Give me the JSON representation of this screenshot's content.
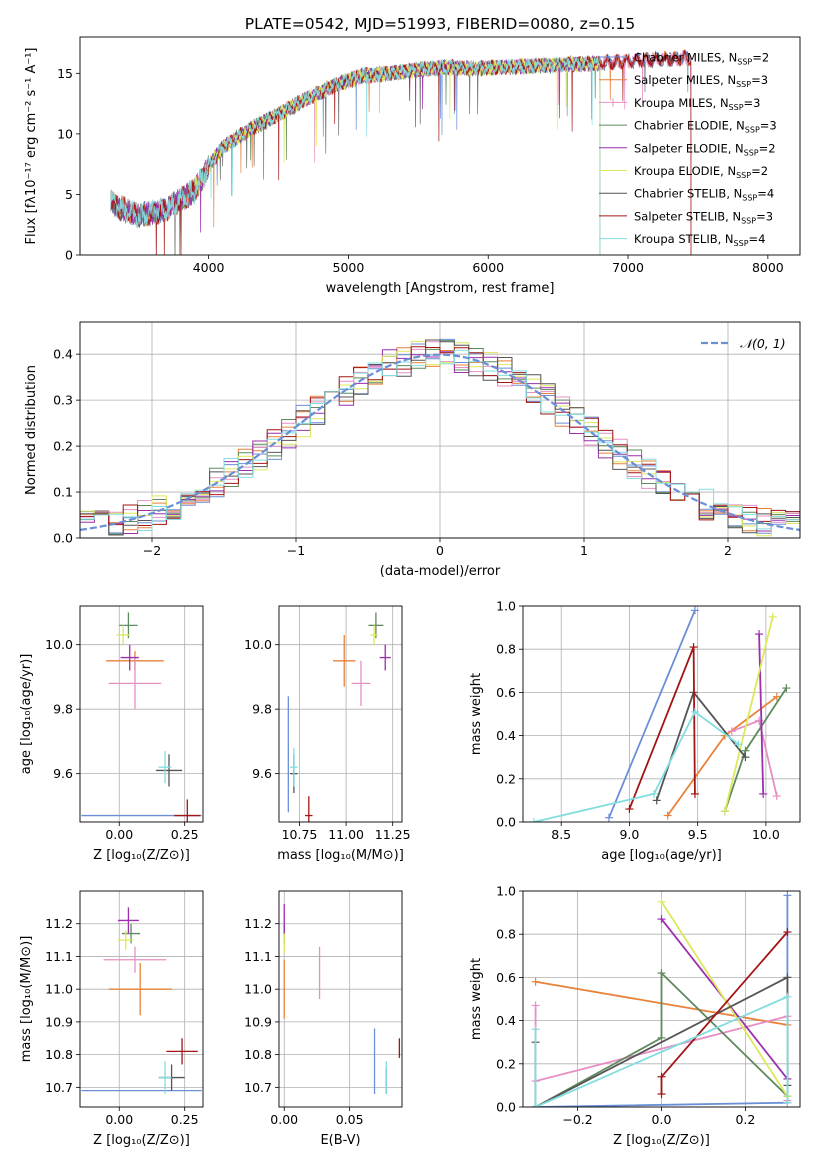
{
  "figure_title": "PLATE=0542, MJD=51993, FIBERID=0080, z=0.15",
  "series_colors": [
    "#6a8fd6",
    "#e8823a",
    "#e58fc3",
    "#5f8a5f",
    "#9b2fae",
    "#dde85a",
    "#555555",
    "#a31515",
    "#82dde0"
  ],
  "chart_data": [
    {
      "id": "spectrum",
      "type": "line",
      "title": "PLATE=0542, MJD=51993, FIBERID=0080, z=0.15",
      "xlabel": "wavelength [Angstrom, rest frame]",
      "ylabel": "Flux [fλ10⁻¹⁷ erg cm⁻² s⁻¹ A⁻¹]",
      "xlim": [
        3080,
        8230
      ],
      "ylim": [
        0,
        18
      ],
      "xticks": [
        4000,
        5000,
        6000,
        7000,
        8000
      ],
      "yticks": [
        0,
        5,
        10,
        15
      ],
      "grid": false,
      "legend_position": "top-right",
      "continuum_profile": {
        "wavelength": [
          3300,
          3500,
          3700,
          3900,
          4000,
          4100,
          4300,
          4500,
          4700,
          4900,
          5100,
          5300,
          5500,
          5700,
          5900,
          6100,
          6300,
          6500,
          6700,
          6900,
          7100,
          7300,
          7450
        ],
        "flux": [
          4.3,
          3.2,
          3.8,
          5.3,
          7.3,
          8.9,
          10.4,
          11.6,
          12.9,
          14.0,
          14.8,
          15.0,
          15.3,
          15.5,
          15.4,
          15.5,
          15.6,
          15.7,
          15.8,
          15.9,
          16.1,
          16.2,
          16.3
        ]
      },
      "series": [
        {
          "name": "Chabrier MILES, N_SSP=2",
          "label_main": "Chabrier MILES, N",
          "label_sub": "SSP",
          "label_tail": "=2",
          "range": [
            3300,
            7450
          ]
        },
        {
          "name": "Salpeter MILES, N_SSP=3",
          "label_main": "Salpeter MILES, N",
          "label_sub": "SSP",
          "label_tail": "=3",
          "range": [
            3300,
            7450
          ]
        },
        {
          "name": "Kroupa MILES, N_SSP=3",
          "label_main": "Kroupa MILES, N",
          "label_sub": "SSP",
          "label_tail": "=3",
          "range": [
            3300,
            7450
          ]
        },
        {
          "name": "Chabrier ELODIE, N_SSP=3",
          "label_main": "Chabrier ELODIE, N",
          "label_sub": "SSP",
          "label_tail": "=3",
          "range": [
            3300,
            6800
          ]
        },
        {
          "name": "Salpeter ELODIE, N_SSP=2",
          "label_main": "Salpeter ELODIE, N",
          "label_sub": "SSP",
          "label_tail": "=2",
          "range": [
            3300,
            6800
          ]
        },
        {
          "name": "Kroupa ELODIE, N_SSP=2",
          "label_main": "Kroupa ELODIE, N",
          "label_sub": "SSP",
          "label_tail": "=2",
          "range": [
            3900,
            6800
          ]
        },
        {
          "name": "Chabrier STELIB, N_SSP=4",
          "label_main": "Chabrier STELIB, N",
          "label_sub": "SSP",
          "label_tail": "=4",
          "range": [
            3300,
            7450
          ]
        },
        {
          "name": "Salpeter STELIB, N_SSP=3",
          "label_main": "Salpeter STELIB, N",
          "label_sub": "SSP",
          "label_tail": "=3",
          "range": [
            3300,
            7450
          ]
        },
        {
          "name": "Kroupa STELIB, N_SSP=4",
          "label_main": "Kroupa STELIB, N",
          "label_sub": "SSP",
          "label_tail": "=4",
          "range": [
            3300,
            6800
          ]
        }
      ]
    },
    {
      "id": "residuals",
      "type": "histogram",
      "xlabel": "(data-model)/error",
      "ylabel": "Normed distribution",
      "xlim": [
        -2.5,
        2.5
      ],
      "ylim": [
        0,
        0.47
      ],
      "xticks": [
        -2,
        -1,
        0,
        1,
        2
      ],
      "yticks": [
        0.0,
        0.1,
        0.2,
        0.3,
        0.4
      ],
      "grid": true,
      "legend_position": "top-right",
      "legend_label": "𝒩(0, 1)",
      "reference_curve": "normal(0,1) pdf",
      "bin_width": 0.1,
      "bin_start": -2.5
    },
    {
      "id": "age_vs_Z",
      "type": "scatter",
      "xlabel": "Z [log₁₀(Z/Z⊙)]",
      "ylabel": "age  [log₁₀(age/yr)]",
      "xlim": [
        -0.15,
        0.32
      ],
      "ylim": [
        9.45,
        10.12
      ],
      "xticks": [
        0.0,
        0.25
      ],
      "yticks": [
        9.6,
        9.8,
        10.0
      ],
      "grid": true,
      "points": [
        {
          "x": 0.085,
          "xerr": 0.23,
          "y": 9.47,
          "yerr": 0.0
        },
        {
          "x": 0.06,
          "xerr": 0.11,
          "y": 9.95,
          "yerr": 0.03
        },
        {
          "x": 0.06,
          "xerr": 0.1,
          "y": 9.88,
          "yerr": 0.08
        },
        {
          "x": 0.035,
          "xerr": 0.035,
          "y": 10.06,
          "yerr": 0.04
        },
        {
          "x": 0.04,
          "xerr": 0.035,
          "y": 9.96,
          "yerr": 0.04
        },
        {
          "x": 0.015,
          "xerr": 0.025,
          "y": 10.03,
          "yerr": 0.03
        },
        {
          "x": 0.19,
          "xerr": 0.05,
          "y": 9.61,
          "yerr": 0.05
        },
        {
          "x": 0.26,
          "xerr": 0.05,
          "y": 9.47,
          "yerr": 0.05
        },
        {
          "x": 0.175,
          "xerr": 0.025,
          "y": 9.62,
          "yerr": 0.05
        }
      ]
    },
    {
      "id": "age_vs_mass",
      "type": "scatter",
      "xlabel": "mass [log₁₀(M/M⊙)]",
      "ylabel": "",
      "xlim": [
        10.64,
        11.3
      ],
      "ylim": [
        9.45,
        10.12
      ],
      "xticks": [
        10.75,
        11.0,
        11.25
      ],
      "yticks": [
        9.6,
        9.8,
        10.0
      ],
      "grid": true,
      "points": [
        {
          "x": 10.69,
          "xerr": 0.0,
          "y": 9.66,
          "yerr": 0.18
        },
        {
          "x": 10.99,
          "xerr": 0.06,
          "y": 9.95,
          "yerr": 0.08
        },
        {
          "x": 11.08,
          "xerr": 0.05,
          "y": 9.88,
          "yerr": 0.07
        },
        {
          "x": 11.16,
          "xerr": 0.04,
          "y": 10.06,
          "yerr": 0.04
        },
        {
          "x": 11.21,
          "xerr": 0.03,
          "y": 9.96,
          "yerr": 0.04
        },
        {
          "x": 11.15,
          "xerr": 0.02,
          "y": 10.03,
          "yerr": 0.03
        },
        {
          "x": 10.72,
          "xerr": 0.02,
          "y": 9.6,
          "yerr": 0.06
        },
        {
          "x": 10.8,
          "xerr": 0.02,
          "y": 9.47,
          "yerr": 0.06
        },
        {
          "x": 10.72,
          "xerr": 0.02,
          "y": 9.62,
          "yerr": 0.06
        }
      ]
    },
    {
      "id": "weight_vs_age",
      "type": "line",
      "xlabel": "age  [log₁₀(age/yr)]",
      "ylabel": "mass weight",
      "xlim": [
        8.22,
        10.25
      ],
      "ylim": [
        0,
        1.0
      ],
      "xticks": [
        8.5,
        9.0,
        9.5,
        10.0
      ],
      "yticks": [
        0.0,
        0.2,
        0.4,
        0.6,
        0.8,
        1.0
      ],
      "grid": true,
      "series": [
        {
          "x": [
            8.85,
            9.48
          ],
          "y": [
            0.02,
            0.98
          ]
        },
        {
          "x": [
            9.28,
            9.7,
            10.08
          ],
          "y": [
            0.03,
            0.4,
            0.58
          ]
        },
        {
          "x": [
            9.75,
            9.95,
            10.08
          ],
          "y": [
            0.42,
            0.47,
            0.12
          ]
        },
        {
          "x": [
            9.7,
            9.85,
            10.15
          ],
          "y": [
            0.05,
            0.33,
            0.62
          ]
        },
        {
          "x": [
            9.95,
            9.98
          ],
          "y": [
            0.87,
            0.13
          ]
        },
        {
          "x": [
            9.7,
            10.05
          ],
          "y": [
            0.05,
            0.95
          ]
        },
        {
          "x": [
            9.2,
            9.47,
            9.85
          ],
          "y": [
            0.1,
            0.6,
            0.3
          ]
        },
        {
          "x": [
            9.0,
            9.47,
            9.48
          ],
          "y": [
            0.06,
            0.81,
            0.13
          ]
        },
        {
          "x": [
            8.3,
            9.18,
            9.48,
            9.8
          ],
          "y": [
            0.0,
            0.13,
            0.51,
            0.36
          ]
        }
      ]
    },
    {
      "id": "mass_vs_Z",
      "type": "scatter",
      "xlabel": "Z [log₁₀(Z/Z⊙)]",
      "ylabel": "mass [log₁₀(M/M⊙)]",
      "xlim": [
        -0.15,
        0.32
      ],
      "ylim": [
        10.64,
        11.3
      ],
      "xticks": [
        0.0,
        0.25
      ],
      "yticks": [
        10.7,
        10.8,
        10.9,
        11.0,
        11.1,
        11.2
      ],
      "grid": true,
      "points": [
        {
          "x": 0.085,
          "xerr": 0.23,
          "y": 10.69,
          "yerr": 0.0
        },
        {
          "x": 0.08,
          "xerr": 0.12,
          "y": 11.0,
          "yerr": 0.08
        },
        {
          "x": 0.06,
          "xerr": 0.12,
          "y": 11.09,
          "yerr": 0.04
        },
        {
          "x": 0.045,
          "xerr": 0.035,
          "y": 11.17,
          "yerr": 0.03
        },
        {
          "x": 0.035,
          "xerr": 0.04,
          "y": 11.21,
          "yerr": 0.04
        },
        {
          "x": 0.025,
          "xerr": 0.03,
          "y": 11.15,
          "yerr": 0.03
        },
        {
          "x": 0.2,
          "xerr": 0.05,
          "y": 10.73,
          "yerr": 0.04
        },
        {
          "x": 0.24,
          "xerr": 0.06,
          "y": 10.81,
          "yerr": 0.04
        },
        {
          "x": 0.175,
          "xerr": 0.025,
          "y": 10.73,
          "yerr": 0.05
        }
      ]
    },
    {
      "id": "mass_vs_EBV",
      "type": "scatter",
      "xlabel": "E(B-V)",
      "ylabel": "",
      "xlim": [
        -0.004,
        0.09
      ],
      "ylim": [
        10.64,
        11.3
      ],
      "xticks": [
        0.0,
        0.05
      ],
      "yticks": [
        10.7,
        10.8,
        10.9,
        11.0,
        11.1,
        11.2
      ],
      "grid": true,
      "points": [
        {
          "x": 0.069,
          "xerr": 0.0,
          "y": 10.78,
          "yerr": 0.1
        },
        {
          "x": 0.0,
          "xerr": 0.0,
          "y": 11.0,
          "yerr": 0.09
        },
        {
          "x": 0.027,
          "xerr": 0.0,
          "y": 11.05,
          "yerr": 0.08
        },
        {
          "x": 0.0,
          "xerr": 0.0,
          "y": 11.17,
          "yerr": 0.03
        },
        {
          "x": 0.0,
          "xerr": 0.0,
          "y": 11.21,
          "yerr": 0.05
        },
        {
          "x": 0.0,
          "xerr": 0.0,
          "y": 11.14,
          "yerr": 0.03
        },
        {
          "x": 0.078,
          "xerr": 0.0,
          "y": 10.72,
          "yerr": 0.04
        },
        {
          "x": 0.088,
          "xerr": 0.0,
          "y": 10.82,
          "yerr": 0.03
        },
        {
          "x": 0.078,
          "xerr": 0.0,
          "y": 10.73,
          "yerr": 0.05
        }
      ]
    },
    {
      "id": "weight_vs_Z",
      "type": "line",
      "xlabel": "Z [log₁₀(Z/Z⊙)]",
      "ylabel": "mass weight",
      "xlim": [
        -0.33,
        0.33
      ],
      "ylim": [
        0,
        1.0
      ],
      "xticks": [
        -0.2,
        0.0,
        0.2
      ],
      "yticks": [
        0.0,
        0.2,
        0.4,
        0.6,
        0.8,
        1.0
      ],
      "grid": true,
      "series": [
        {
          "x": [
            -0.3,
            0.3,
            0.3
          ],
          "y": [
            0.0,
            0.02,
            0.98
          ]
        },
        {
          "x": [
            -0.3,
            0.3
          ],
          "y": [
            0.58,
            0.38
          ]
        },
        {
          "x": [
            -0.3,
            -0.3,
            0.3,
            0.3
          ],
          "y": [
            0.47,
            0.12,
            0.42,
            0.03
          ]
        },
        {
          "x": [
            -0.3,
            0.0,
            0.0,
            0.3
          ],
          "y": [
            0.0,
            0.32,
            0.62,
            0.05
          ]
        },
        {
          "x": [
            0.0,
            0.3
          ],
          "y": [
            0.87,
            0.13
          ]
        },
        {
          "x": [
            0.0,
            0.3
          ],
          "y": [
            0.95,
            0.05
          ]
        },
        {
          "x": [
            -0.3,
            -0.3,
            0.3,
            0.3
          ],
          "y": [
            0.3,
            0.0,
            0.6,
            0.1
          ]
        },
        {
          "x": [
            0.0,
            0.0,
            0.3
          ],
          "y": [
            0.06,
            0.14,
            0.81
          ]
        },
        {
          "x": [
            -0.3,
            -0.3,
            0.3,
            0.3
          ],
          "y": [
            0.36,
            0.0,
            0.51,
            0.02
          ]
        }
      ]
    }
  ]
}
